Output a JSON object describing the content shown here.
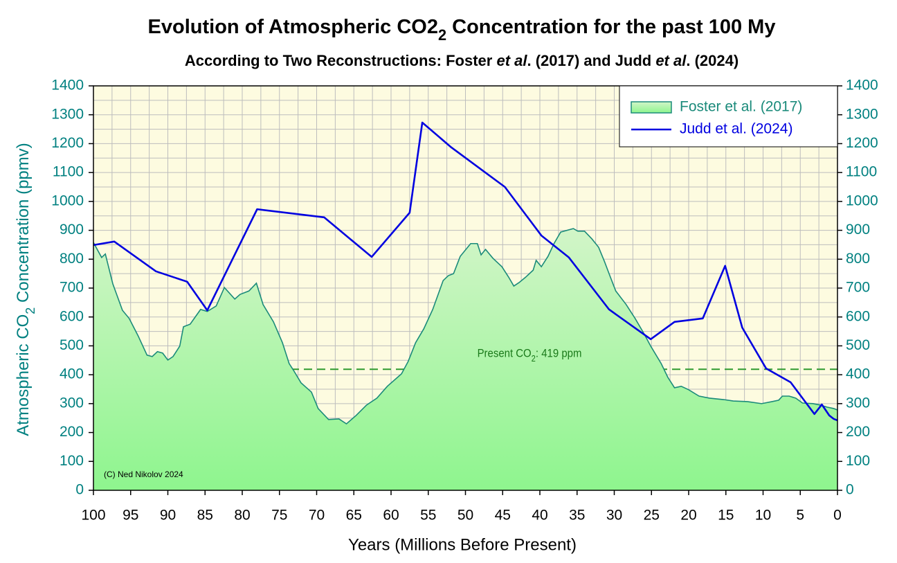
{
  "chart_data": {
    "type": "area-line",
    "title": [
      {
        "text": "Evolution of Atmospheric CO2"
      },
      {
        "text": "2",
        "sub": true
      },
      {
        "text": " Concentration for the past 100 My"
      }
    ],
    "subtitle": [
      {
        "text": "According to Two Reconstructions: Foster "
      },
      {
        "text": "et al",
        "italic": true
      },
      {
        "text": ". (2017) and Judd "
      },
      {
        "text": "et al",
        "italic": true
      },
      {
        "text": ". (2024)"
      }
    ],
    "xlabel": "Years (Millions Before Present)",
    "ylabel": [
      {
        "text": "Atmospheric CO"
      },
      {
        "text": "2",
        "sub": true
      },
      {
        "text": " Concentration (ppmv)"
      }
    ],
    "credit": "(C) Ned Nikolov 2024",
    "xlim": [
      100,
      0
    ],
    "xticks": [
      100,
      95,
      90,
      85,
      80,
      75,
      70,
      65,
      60,
      55,
      50,
      45,
      40,
      35,
      30,
      25,
      20,
      15,
      10,
      5,
      0
    ],
    "ylim": [
      0,
      1400
    ],
    "yticks": [
      0,
      100,
      200,
      300,
      400,
      500,
      600,
      700,
      800,
      900,
      1000,
      1100,
      1200,
      1300,
      1400
    ],
    "y2lim": [
      0,
      1400
    ],
    "y2ticks": [
      0,
      100,
      200,
      300,
      400,
      500,
      600,
      700,
      800,
      900,
      1000,
      1100,
      1200,
      1300,
      1400
    ],
    "grid": true,
    "minor_grid": true,
    "legend": "upper right",
    "background": "#fdfbe0",
    "axis_color": "#008080",
    "reference": {
      "value": 419,
      "color": "#2e9a2e",
      "label": [
        {
          "text": "Present CO"
        },
        {
          "text": "2",
          "sub": true
        },
        {
          "text": ": 419 ppm"
        }
      ]
    },
    "series": [
      {
        "name": "Foster et al. (2017)",
        "kind": "area",
        "color": "#1a8a7a",
        "fill": [
          "#d2f5c8",
          "#8ef58e"
        ],
        "x": [
          100,
          98.9,
          98.4,
          97.4,
          96.1,
          95.2,
          94,
          92.8,
          92.1,
          91.4,
          90.7,
          90,
          89.3,
          88.4,
          87.9,
          87,
          85.6,
          84.7,
          83.5,
          82.4,
          81,
          80.3,
          79.1,
          78.1,
          77.2,
          75.8,
          74.6,
          73.7,
          73.1,
          72.1,
          70.7,
          69.8,
          68.4,
          67,
          66,
          64.7,
          63.3,
          61.9,
          60.5,
          58.6,
          57.7,
          56.7,
          55.6,
          54.4,
          53,
          52.3,
          51.6,
          50.7,
          49.3,
          48.4,
          47.9,
          47.3,
          46.3,
          45.1,
          44.2,
          43.5,
          42.8,
          41.9,
          40.9,
          40.5,
          39.8,
          38.9,
          38.1,
          37.2,
          35.5,
          34.9,
          34,
          33,
          32.1,
          31.3,
          30.7,
          29.8,
          28.4,
          27.2,
          26,
          25.1,
          23.7,
          22.8,
          21.9,
          21,
          20,
          18.6,
          17.2,
          15.3,
          14,
          12.1,
          10.2,
          8.8,
          7.9,
          7.4,
          6.5,
          5.6,
          4.7,
          3.3,
          2.3,
          1.4,
          0.5,
          0
        ],
        "values": [
          858,
          806,
          818,
          715,
          623,
          595,
          535,
          468,
          463,
          480,
          475,
          451,
          463,
          499,
          566,
          575,
          626,
          619,
          638,
          702,
          662,
          678,
          690,
          717,
          643,
          583,
          511,
          439,
          415,
          372,
          340,
          283,
          245,
          247,
          230,
          259,
          295,
          319,
          360,
          403,
          446,
          511,
          559,
          626,
          726,
          743,
          750,
          810,
          854,
          854,
          815,
          834,
          803,
          774,
          738,
          707,
          719,
          738,
          762,
          796,
          774,
          810,
          854,
          894,
          906,
          897,
          897,
          870,
          841,
          791,
          750,
          690,
          643,
          595,
          542,
          499,
          439,
          391,
          355,
          360,
          348,
          326,
          319,
          314,
          309,
          307,
          300,
          307,
          312,
          326,
          326,
          319,
          302,
          300,
          295,
          288,
          283,
          278
        ]
      },
      {
        "name": "Judd et al. (2024)",
        "kind": "line",
        "color": "#0000e0",
        "x": [
          100,
          97.2,
          91.6,
          87.4,
          84.7,
          78,
          69,
          62.6,
          57.5,
          55.8,
          51.9,
          44.7,
          39.8,
          36.1,
          30.7,
          25.1,
          21.9,
          18.1,
          15.1,
          12.8,
          9.6,
          6.3,
          3.1,
          2.1,
          1.1,
          0.5,
          0
        ],
        "values": [
          849,
          861,
          758,
          722,
          623,
          973,
          945,
          808,
          961,
          1273,
          1187,
          1050,
          882,
          806,
          626,
          523,
          583,
          595,
          777,
          563,
          422,
          374,
          264,
          297,
          259,
          247,
          242
        ]
      }
    ]
  }
}
